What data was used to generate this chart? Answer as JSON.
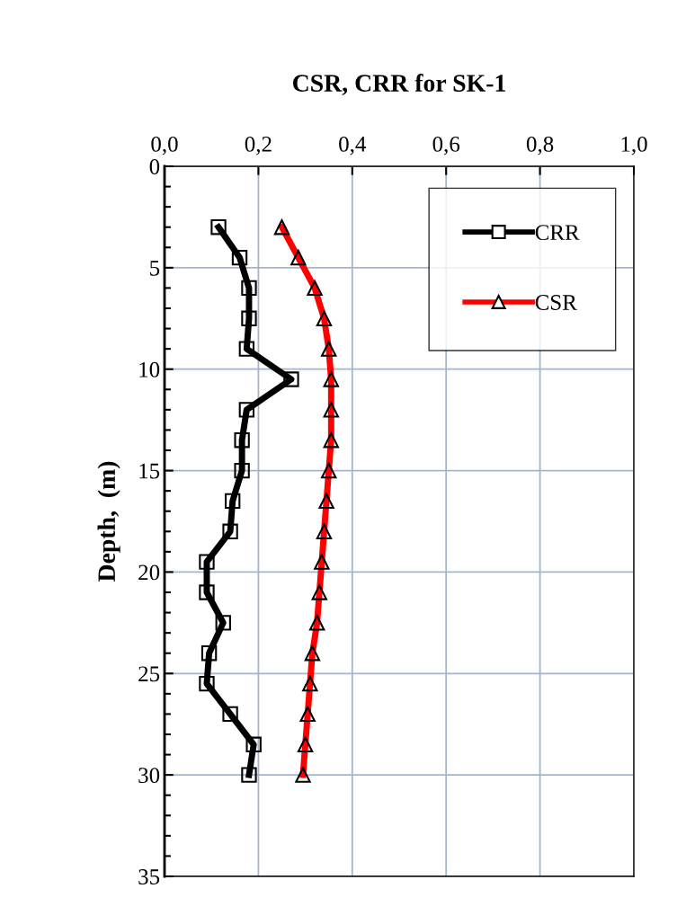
{
  "chart_data": {
    "type": "line",
    "orientation": "horizontal",
    "title": "CSR, CRR for SK-1",
    "ylabel": "Depth,  (m)",
    "x": [
      3,
      4.5,
      6,
      7.5,
      9,
      10.5,
      12,
      13.5,
      15,
      16.5,
      18,
      19.5,
      21,
      22.5,
      24,
      25.5,
      27,
      28.5,
      30
    ],
    "series": [
      {
        "name": "CRR",
        "color": "#000000",
        "marker": "square",
        "values": [
          0.115,
          0.16,
          0.18,
          0.18,
          0.175,
          0.27,
          0.175,
          0.165,
          0.165,
          0.145,
          0.14,
          0.09,
          0.09,
          0.125,
          0.095,
          0.09,
          0.14,
          0.19,
          0.18
        ]
      },
      {
        "name": "CSR",
        "color": "#ff0000",
        "marker": "triangle",
        "values": [
          0.25,
          0.285,
          0.32,
          0.34,
          0.35,
          0.355,
          0.355,
          0.355,
          0.35,
          0.345,
          0.34,
          0.335,
          0.33,
          0.325,
          0.315,
          0.31,
          0.305,
          0.3,
          0.295
        ]
      }
    ],
    "xlim": [
      0,
      1
    ],
    "xticks": [
      {
        "value": 0,
        "label": "0,0"
      },
      {
        "value": 0.2,
        "label": "0,2"
      },
      {
        "value": 0.4,
        "label": "0,4"
      },
      {
        "value": 0.6,
        "label": "0,6"
      },
      {
        "value": 0.8,
        "label": "0,8"
      },
      {
        "value": 1,
        "label": "1,0"
      }
    ],
    "ylim": [
      35,
      0
    ],
    "yticks": [
      0,
      5,
      10,
      15,
      20,
      25,
      30,
      35
    ],
    "grid": true,
    "legend": "top right"
  }
}
